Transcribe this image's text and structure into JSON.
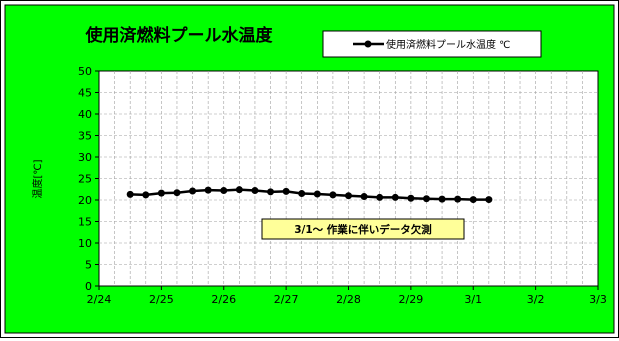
{
  "chart_data": {
    "type": "line",
    "title": "使用済燃料プール水温度",
    "ylabel": "温度[℃]",
    "xlabel": "",
    "ylim": [
      0,
      50
    ],
    "yticks": [
      0,
      5,
      10,
      15,
      20,
      25,
      30,
      35,
      40,
      45,
      50
    ],
    "xlim": [
      "2/24",
      "3/3"
    ],
    "xtick_labels": [
      "2/24",
      "2/25",
      "2/26",
      "2/27",
      "2/28",
      "2/29",
      "3/1",
      "3/2",
      "3/3"
    ],
    "grid": true,
    "legend": {
      "position": "top-right",
      "entries": [
        "使用済燃料プール水温度 ℃"
      ]
    },
    "annotation": "3/1～ 作業に伴いデータ欠測",
    "series": [
      {
        "name": "使用済燃料プール水温度 ℃",
        "color": "#000000",
        "x": [
          "2/24 12:00",
          "2/24 18:00",
          "2/25 00:00",
          "2/25 06:00",
          "2/25 12:00",
          "2/25 18:00",
          "2/26 00:00",
          "2/26 06:00",
          "2/26 12:00",
          "2/26 18:00",
          "2/27 00:00",
          "2/27 06:00",
          "2/27 12:00",
          "2/27 18:00",
          "2/28 00:00",
          "2/28 06:00",
          "2/28 12:00",
          "2/28 18:00",
          "2/29 00:00",
          "2/29 06:00",
          "2/29 12:00",
          "2/29 18:00",
          "3/1 00:00",
          "3/1 06:00"
        ],
        "values": [
          21.3,
          21.2,
          21.6,
          21.7,
          22.1,
          22.3,
          22.2,
          22.4,
          22.2,
          21.9,
          22.0,
          21.5,
          21.4,
          21.2,
          21.0,
          20.8,
          20.6,
          20.6,
          20.4,
          20.3,
          20.2,
          20.2,
          20.1,
          20.1
        ]
      }
    ]
  },
  "colors": {
    "plot_bg": "#00ff00",
    "plot_area": "#ffffff",
    "annotation_bg": "#ffff99",
    "grid": "#a0a0a0"
  }
}
